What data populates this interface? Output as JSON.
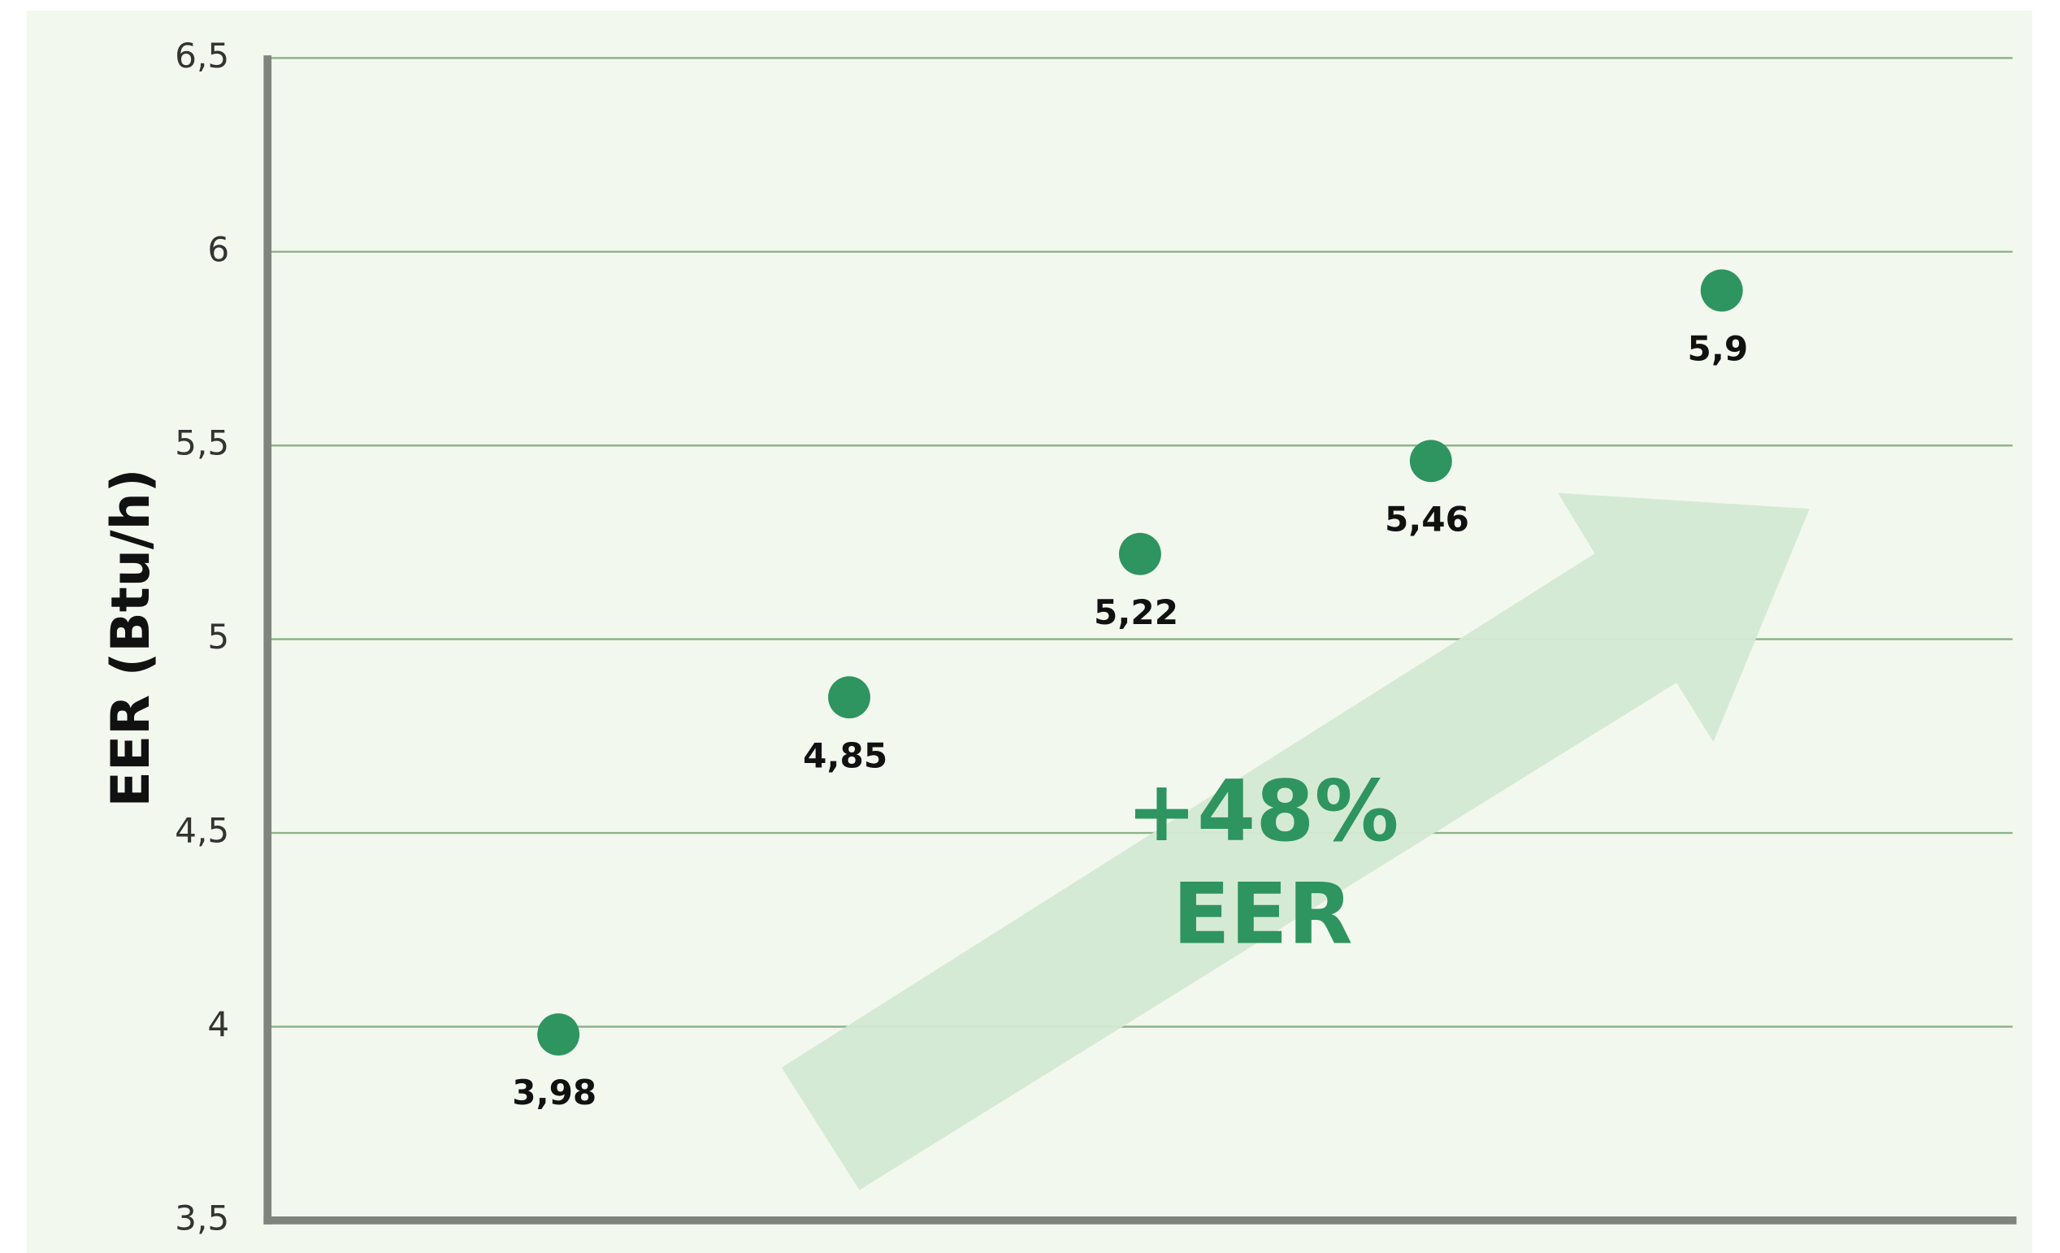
{
  "chart_data": {
    "type": "scatter",
    "y_label": "EER (Btu/h)",
    "categories": [
      null,
      null,
      null,
      null,
      null
    ],
    "values": [
      3.98,
      4.85,
      5.22,
      5.46,
      5.9
    ],
    "value_labels": [
      "3,98",
      "4,85",
      "5,22",
      "5,46",
      "5,9"
    ],
    "color": "#2e9460",
    "ylim": [
      3.5,
      6.5
    ],
    "yticks": [
      {
        "value": 3.5,
        "label": "3,5"
      },
      4,
      {
        "value": 4.5,
        "label": "4,5"
      },
      5,
      {
        "value": 5.5,
        "label": "5,5"
      },
      6,
      {
        "value": 6.5,
        "label": "6,5"
      }
    ],
    "grid": true,
    "annotation": [
      "+48%",
      "EER"
    ]
  }
}
